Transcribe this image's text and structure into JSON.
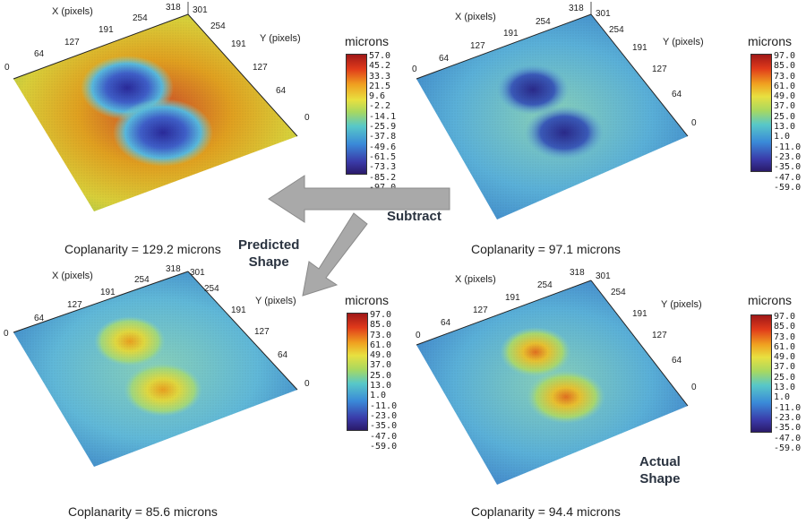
{
  "panels": [
    {
      "id": "top-left",
      "caption": "Coplanarity = 129.2 microns",
      "colorbar_title": "microns",
      "colorbar_ticks": [
        "57.0",
        "45.2",
        "33.3",
        "21.5",
        "9.6",
        "-2.2",
        "-14.1",
        "-25.9",
        "-37.8",
        "-49.6",
        "-61.5",
        "-73.3",
        "-85.2",
        "-97.0"
      ],
      "x_axis_label": "X (pixels)",
      "y_axis_label": "Y (pixels)",
      "x_ticks": [
        "0",
        "64",
        "127",
        "191",
        "254",
        "318"
      ],
      "y_ticks": [
        "301",
        "254",
        "191",
        "127",
        "64",
        "0"
      ]
    },
    {
      "id": "top-right",
      "caption": "Coplanarity = 97.1 microns",
      "colorbar_title": "microns",
      "colorbar_ticks": [
        "97.0",
        "85.0",
        "73.0",
        "61.0",
        "49.0",
        "37.0",
        "25.0",
        "13.0",
        "1.0",
        "-11.0",
        "-23.0",
        "-35.0",
        "-47.0",
        "-59.0"
      ],
      "x_axis_label": "X (pixels)",
      "y_axis_label": "Y (pixels)",
      "x_ticks": [
        "0",
        "64",
        "127",
        "191",
        "254",
        "318"
      ],
      "y_ticks": [
        "301",
        "254",
        "191",
        "127",
        "64",
        "0"
      ]
    },
    {
      "id": "bottom-left",
      "caption": "Coplanarity = 85.6 microns",
      "colorbar_title": "microns",
      "colorbar_ticks": [
        "97.0",
        "85.0",
        "73.0",
        "61.0",
        "49.0",
        "37.0",
        "25.0",
        "13.0",
        "1.0",
        "-11.0",
        "-23.0",
        "-35.0",
        "-47.0",
        "-59.0"
      ],
      "x_axis_label": "X (pixels)",
      "y_axis_label": "Y (pixels)",
      "x_ticks": [
        "0",
        "64",
        "127",
        "191",
        "254",
        "318"
      ],
      "y_ticks": [
        "301",
        "254",
        "191",
        "127",
        "64",
        "0"
      ]
    },
    {
      "id": "bottom-right",
      "caption": "Coplanarity = 94.4 microns",
      "colorbar_title": "microns",
      "colorbar_ticks": [
        "97.0",
        "85.0",
        "73.0",
        "61.0",
        "49.0",
        "37.0",
        "25.0",
        "13.0",
        "1.0",
        "-11.0",
        "-23.0",
        "-35.0",
        "-47.0",
        "-59.0"
      ],
      "x_axis_label": "X (pixels)",
      "y_axis_label": "Y (pixels)",
      "x_ticks": [
        "0",
        "64",
        "127",
        "191",
        "254",
        "318"
      ],
      "y_ticks": [
        "301",
        "254",
        "191",
        "127",
        "64",
        "0"
      ]
    }
  ],
  "callouts": {
    "subtract": "Subtract",
    "predicted_line1": "Predicted",
    "predicted_line2": "Shape",
    "actual_line1": "Actual",
    "actual_line2": "Shape"
  },
  "chart_data": [
    {
      "type": "heatmap",
      "panel": "top-left",
      "unit": "microns",
      "color_range": [
        -97.0,
        57.0
      ],
      "coplanarity": 129.2
    },
    {
      "type": "heatmap",
      "panel": "top-right",
      "unit": "microns",
      "color_range": [
        -59.0,
        97.0
      ],
      "coplanarity": 97.1
    },
    {
      "type": "heatmap",
      "panel": "bottom-left",
      "unit": "microns",
      "color_range": [
        -59.0,
        97.0
      ],
      "coplanarity": 85.6
    },
    {
      "type": "heatmap",
      "panel": "bottom-right",
      "unit": "microns",
      "color_range": [
        -59.0,
        97.0
      ],
      "coplanarity": 94.4
    }
  ],
  "colors": {
    "arrow_fill": "#a9a9a9",
    "callout_text": "#2a3340"
  }
}
